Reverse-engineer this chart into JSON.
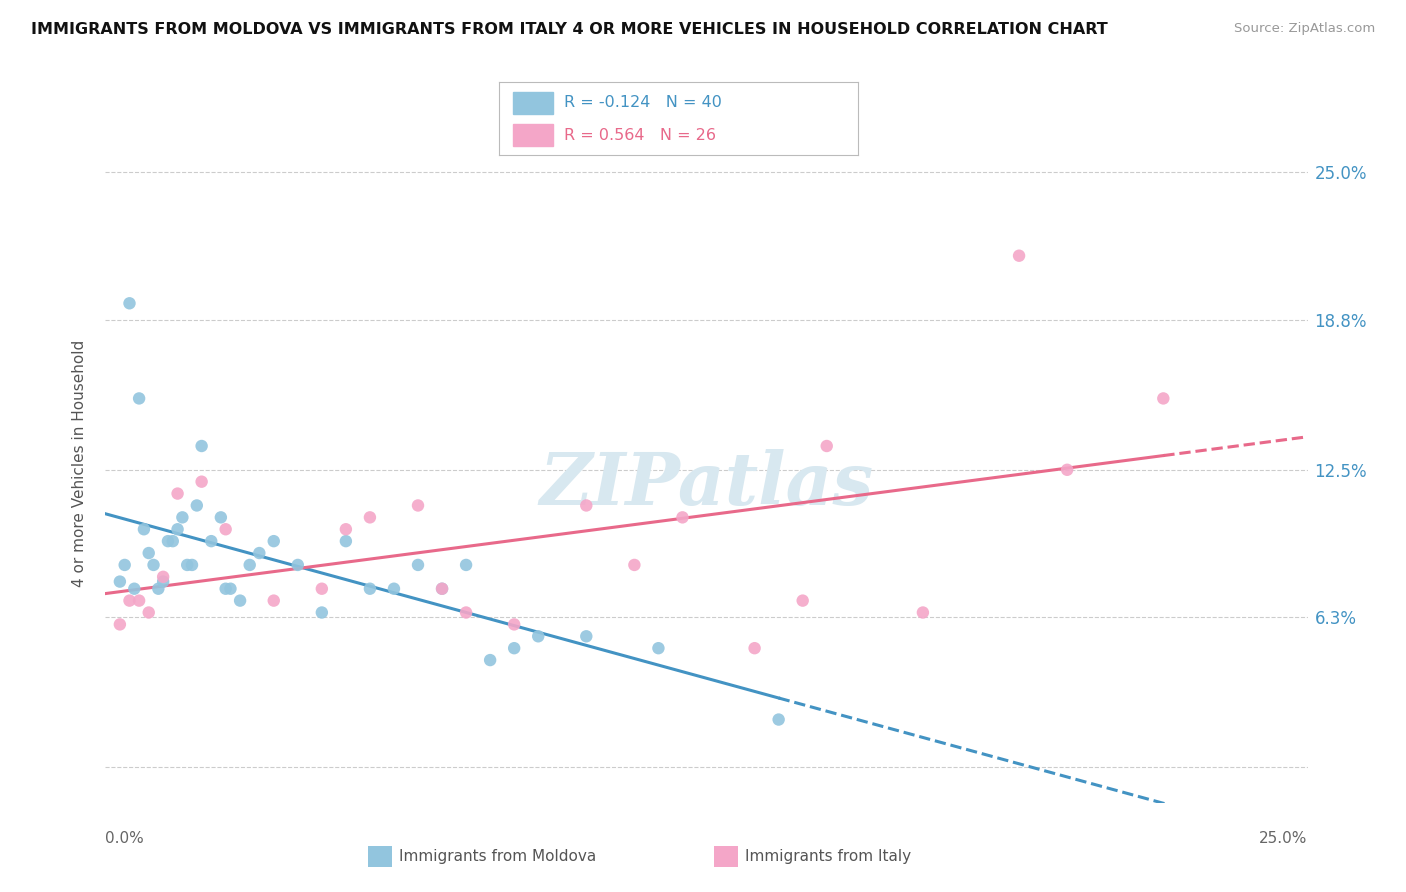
{
  "title": "IMMIGRANTS FROM MOLDOVA VS IMMIGRANTS FROM ITALY 4 OR MORE VEHICLES IN HOUSEHOLD CORRELATION CHART",
  "source": "Source: ZipAtlas.com",
  "ylabel": "4 or more Vehicles in Household",
  "xlim": [
    0.0,
    25.0
  ],
  "ylim": [
    -1.5,
    27.0
  ],
  "ytick_vals": [
    0.0,
    6.3,
    12.5,
    18.8,
    25.0
  ],
  "ytick_labels": [
    "",
    "6.3%",
    "12.5%",
    "18.8%",
    "25.0%"
  ],
  "legend_moldova_text": "R = -0.124   N = 40",
  "legend_italy_text": "R = 0.564   N = 26",
  "moldova_color": "#92c5de",
  "italy_color": "#f4a6c8",
  "moldova_line_color": "#4393c3",
  "italy_line_color": "#e8698a",
  "moldova_x": [
    0.3,
    0.4,
    0.5,
    0.6,
    0.7,
    0.8,
    0.9,
    1.0,
    1.1,
    1.2,
    1.3,
    1.4,
    1.5,
    1.6,
    1.7,
    1.8,
    1.9,
    2.0,
    2.2,
    2.4,
    2.5,
    2.6,
    2.8,
    3.0,
    3.2,
    3.5,
    4.0,
    4.5,
    5.0,
    5.5,
    6.0,
    6.5,
    7.0,
    7.5,
    8.0,
    8.5,
    9.0,
    10.0,
    11.5,
    14.0
  ],
  "moldova_y": [
    7.8,
    8.5,
    19.5,
    7.5,
    15.5,
    10.0,
    9.0,
    8.5,
    7.5,
    7.8,
    9.5,
    9.5,
    10.0,
    10.5,
    8.5,
    8.5,
    11.0,
    13.5,
    9.5,
    10.5,
    7.5,
    7.5,
    7.0,
    8.5,
    9.0,
    9.5,
    8.5,
    6.5,
    9.5,
    7.5,
    7.5,
    8.5,
    7.5,
    8.5,
    4.5,
    5.0,
    5.5,
    5.5,
    5.0,
    2.0
  ],
  "italy_x": [
    0.3,
    0.5,
    0.7,
    0.9,
    1.2,
    1.5,
    2.0,
    2.5,
    3.5,
    4.5,
    5.0,
    5.5,
    6.5,
    7.0,
    7.5,
    8.5,
    10.0,
    11.0,
    12.0,
    13.5,
    14.5,
    15.0,
    17.0,
    19.0,
    20.0,
    22.0
  ],
  "italy_y": [
    6.0,
    7.0,
    7.0,
    6.5,
    8.0,
    11.5,
    12.0,
    10.0,
    7.0,
    7.5,
    10.0,
    10.5,
    11.0,
    7.5,
    6.5,
    6.0,
    11.0,
    8.5,
    10.5,
    5.0,
    7.0,
    13.5,
    6.5,
    21.5,
    12.5,
    15.5
  ],
  "watermark_text": "ZIPatlas",
  "background_color": "#ffffff",
  "grid_color": "#cccccc",
  "grid_style": "--"
}
